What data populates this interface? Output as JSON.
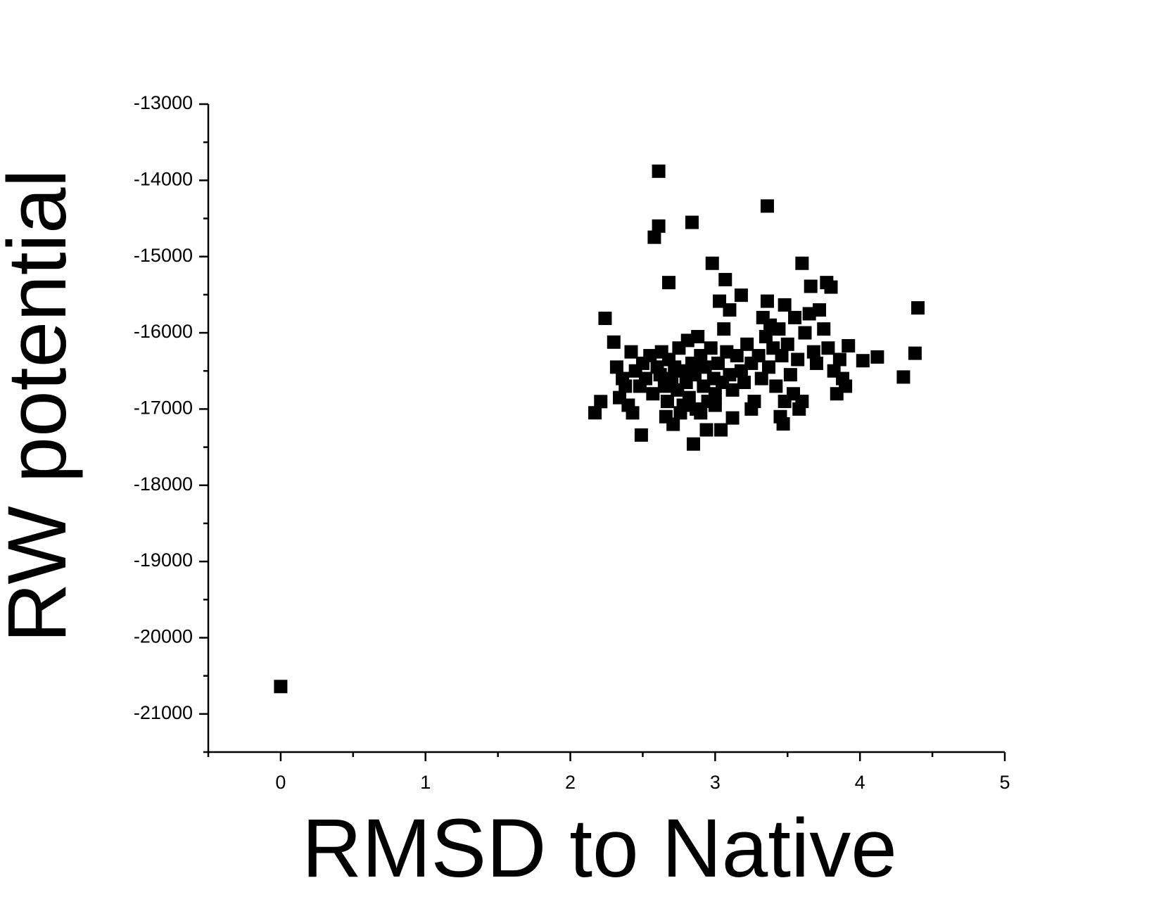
{
  "chart_data": {
    "type": "scatter",
    "x_label": "RMSD to Native",
    "y_label": "RW potential",
    "xlim": [
      -0.5,
      5
    ],
    "ylim": [
      -21500,
      -13000
    ],
    "xticks": [
      0,
      1,
      2,
      3,
      4,
      5
    ],
    "yticks": [
      -21000,
      -20000,
      -19000,
      -18000,
      -17000,
      -16000,
      -15000,
      -14000,
      -13000
    ],
    "color": "#000000",
    "x": [
      0,
      2.61,
      3.36,
      2.84,
      2.61,
      2.58,
      2.98,
      3.6,
      2.68,
      3.07,
      3.18,
      4.4,
      3.77,
      3.66,
      3.36,
      3.48,
      3.03,
      2.24,
      2.3,
      4.38,
      4.3,
      4.12,
      4.02,
      3.92,
      2.17,
      2.21,
      2.49,
      2.85,
      2.94,
      3.04,
      3.12,
      3.47,
      2.42,
      2.45,
      2.48,
      2.5,
      2.52,
      2.55,
      2.57,
      2.6,
      2.62,
      2.63,
      2.65,
      2.67,
      2.68,
      2.7,
      2.71,
      2.72,
      2.74,
      2.75,
      2.76,
      2.78,
      2.8,
      2.81,
      2.82,
      2.84,
      2.86,
      2.87,
      2.88,
      2.9,
      2.92,
      2.93,
      2.95,
      2.97,
      2.99,
      3.0,
      3.02,
      3.05,
      3.08,
      3.1,
      3.12,
      3.15,
      3.18,
      3.2,
      3.22,
      3.25,
      3.27,
      3.3,
      3.32,
      3.33,
      3.35,
      3.37,
      3.38,
      3.4,
      3.42,
      3.44,
      3.46,
      3.48,
      3.5,
      3.52,
      3.54,
      3.55,
      3.57,
      3.58,
      3.62,
      3.65,
      3.68,
      3.7,
      3.72,
      3.75,
      3.78,
      3.8,
      3.82,
      3.84,
      3.86,
      3.88,
      3.9,
      2.32,
      2.34,
      2.36,
      2.4,
      2.43,
      2.38,
      3.06,
      3.1,
      2.78,
      2.66,
      2.9,
      3.25,
      3.45,
      3.6,
      3.0
    ],
    "values": [
      -20640,
      -13880,
      -14337,
      -14551,
      -14600,
      -14746,
      -15088,
      -15088,
      -15341,
      -15302,
      -15507,
      -15673,
      -15341,
      -15390,
      -15585,
      -15634,
      -15585,
      -15810,
      -16122,
      -16268,
      -16580,
      -16317,
      -16366,
      -16170,
      -17049,
      -16902,
      -17341,
      -17459,
      -17273,
      -17273,
      -17117,
      -17195,
      -16250,
      -16500,
      -16700,
      -16400,
      -16600,
      -16300,
      -16800,
      -16450,
      -16550,
      -16250,
      -16700,
      -16900,
      -16350,
      -16600,
      -17200,
      -16450,
      -16750,
      -16200,
      -17050,
      -16500,
      -16650,
      -16100,
      -16850,
      -16400,
      -16550,
      -17000,
      -16050,
      -16300,
      -16700,
      -16450,
      -16900,
      -16200,
      -16600,
      -16800,
      -16400,
      -16650,
      -16250,
      -16550,
      -16750,
      -16300,
      -16500,
      -16650,
      -16150,
      -16400,
      -16900,
      -16300,
      -16600,
      -15800,
      -16050,
      -16450,
      -15900,
      -16200,
      -16700,
      -15950,
      -16300,
      -16900,
      -16150,
      -16550,
      -16800,
      -15800,
      -16350,
      -17000,
      -16000,
      -15750,
      -16250,
      -16400,
      -15700,
      -15950,
      -16200,
      -15400,
      -16500,
      -16800,
      -16350,
      -16600,
      -16700,
      -16450,
      -16850,
      -16600,
      -16950,
      -17050,
      -16700,
      -15950,
      -15700,
      -16950,
      -17100,
      -17050,
      -17000,
      -17100,
      -16900,
      -16950
    ]
  }
}
